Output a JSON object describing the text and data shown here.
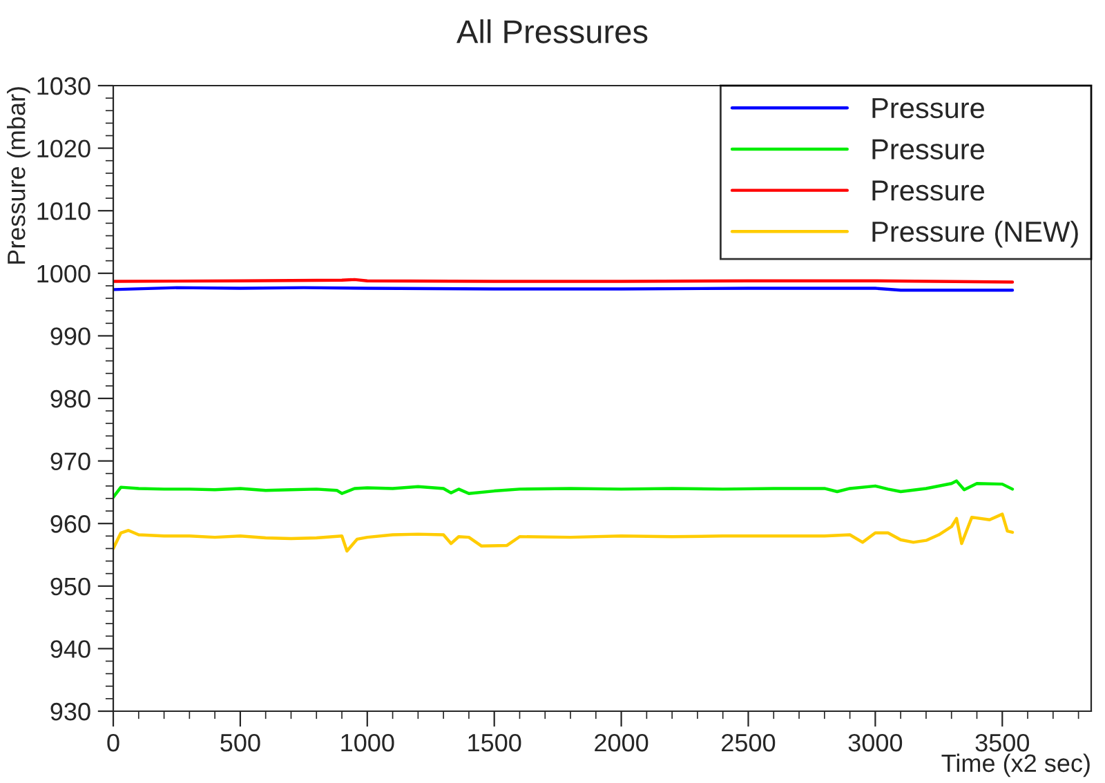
{
  "chart_data": {
    "type": "line",
    "title": "All Pressures",
    "xlabel": "Time (x2 sec)",
    "ylabel": "Pressure (mbar)",
    "xlim": [
      0,
      3850
    ],
    "xticks": [
      0,
      500,
      1000,
      1500,
      2000,
      2500,
      3000,
      3500
    ],
    "ylim": [
      930,
      1030
    ],
    "yticks": [
      930,
      940,
      950,
      960,
      970,
      980,
      990,
      1000,
      1010,
      1020,
      1030
    ],
    "legend": "top right",
    "grid": false,
    "marker": "none",
    "line_style": "solid",
    "series": [
      {
        "name": "Pressure",
        "color": "#0000ff",
        "x": [
          0,
          250,
          500,
          750,
          1000,
          1500,
          2000,
          2500,
          3000,
          3100,
          3540
        ],
        "values": [
          997.4,
          997.7,
          997.6,
          997.7,
          997.6,
          997.5,
          997.5,
          997.6,
          997.6,
          997.3,
          997.3
        ]
      },
      {
        "name": "Pressure",
        "color": "#00ee00",
        "x": [
          0,
          30,
          100,
          200,
          300,
          400,
          500,
          600,
          700,
          800,
          880,
          900,
          950,
          1000,
          1100,
          1200,
          1300,
          1330,
          1360,
          1400,
          1500,
          1600,
          1800,
          2000,
          2200,
          2400,
          2600,
          2800,
          2850,
          2900,
          3000,
          3050,
          3100,
          3200,
          3300,
          3320,
          3350,
          3400,
          3500,
          3540
        ],
        "values": [
          964.2,
          965.8,
          965.6,
          965.5,
          965.5,
          965.4,
          965.6,
          965.3,
          965.4,
          965.5,
          965.3,
          964.8,
          965.6,
          965.7,
          965.6,
          965.9,
          965.6,
          964.9,
          965.5,
          964.8,
          965.2,
          965.5,
          965.6,
          965.5,
          965.6,
          965.5,
          965.6,
          965.6,
          965.1,
          965.6,
          966.0,
          965.5,
          965.1,
          965.6,
          966.4,
          966.8,
          965.4,
          966.4,
          966.3,
          965.5
        ]
      },
      {
        "name": "Pressure",
        "color": "#ff0000",
        "x": [
          0,
          500,
          900,
          950,
          1000,
          1500,
          2000,
          2500,
          3000,
          3540
        ],
        "values": [
          998.7,
          998.8,
          998.9,
          999.0,
          998.8,
          998.7,
          998.7,
          998.8,
          998.8,
          998.6
        ]
      },
      {
        "name": "Pressure (NEW)",
        "color": "#ffcc00",
        "x": [
          0,
          30,
          60,
          100,
          200,
          300,
          400,
          500,
          600,
          700,
          800,
          900,
          920,
          960,
          1000,
          1100,
          1200,
          1300,
          1330,
          1360,
          1400,
          1450,
          1550,
          1600,
          1800,
          2000,
          2200,
          2400,
          2600,
          2800,
          2900,
          2950,
          3000,
          3050,
          3100,
          3150,
          3200,
          3250,
          3300,
          3320,
          3340,
          3380,
          3450,
          3500,
          3520,
          3540
        ],
        "values": [
          956.0,
          958.5,
          958.9,
          958.2,
          958.0,
          958.0,
          957.8,
          958.0,
          957.7,
          957.6,
          957.7,
          958.0,
          955.6,
          957.5,
          957.8,
          958.2,
          958.3,
          958.2,
          956.8,
          957.9,
          957.8,
          956.4,
          956.5,
          957.9,
          957.8,
          958.0,
          957.9,
          958.0,
          958.0,
          958.0,
          958.2,
          957.0,
          958.5,
          958.5,
          957.4,
          957.0,
          957.3,
          958.2,
          959.5,
          960.8,
          956.8,
          961.0,
          960.6,
          961.5,
          958.8,
          958.6
        ]
      }
    ]
  }
}
